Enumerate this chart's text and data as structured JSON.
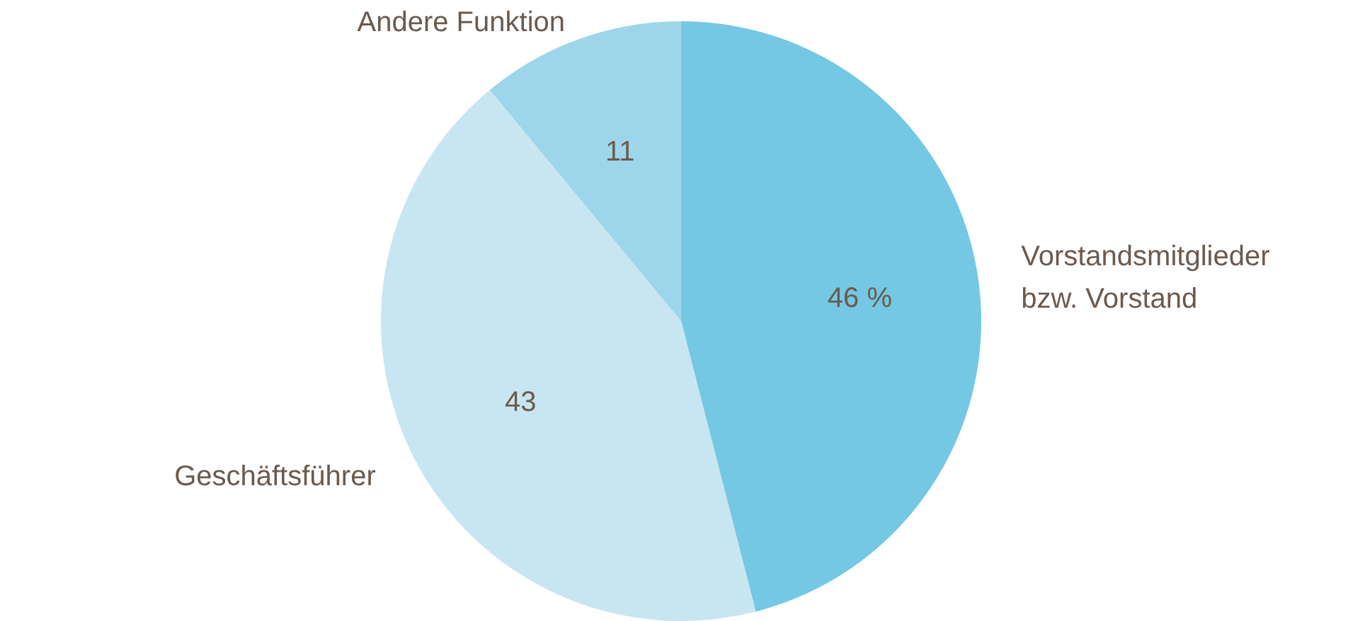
{
  "chart_data": {
    "type": "pie",
    "categories": [
      "Vorstandsmitglieder\nbzw. Vorstand",
      "Geschäftsführer",
      "Andere Funktion"
    ],
    "values": [
      46,
      43,
      11
    ],
    "value_labels": [
      "46 %",
      "43",
      "11"
    ],
    "colors": [
      "#74c8e3",
      "#c8e6f2",
      "#9dd6ea"
    ],
    "legend": false
  }
}
